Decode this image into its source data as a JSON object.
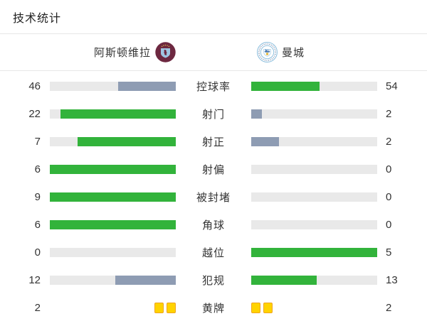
{
  "title": "技术统计",
  "teams": {
    "home": {
      "name": "阿斯顿维拉"
    },
    "away": {
      "name": "曼城"
    }
  },
  "rows": [
    {
      "label": "控球率",
      "home": 46,
      "away": 54,
      "type": "bar"
    },
    {
      "label": "射门",
      "home": 22,
      "away": 2,
      "type": "bar"
    },
    {
      "label": "射正",
      "home": 7,
      "away": 2,
      "type": "bar"
    },
    {
      "label": "射偏",
      "home": 6,
      "away": 0,
      "type": "bar"
    },
    {
      "label": "被封堵",
      "home": 9,
      "away": 0,
      "type": "bar"
    },
    {
      "label": "角球",
      "home": 6,
      "away": 0,
      "type": "bar"
    },
    {
      "label": "越位",
      "home": 0,
      "away": 5,
      "type": "bar"
    },
    {
      "label": "犯规",
      "home": 12,
      "away": 13,
      "type": "bar"
    },
    {
      "label": "黄牌",
      "home": 2,
      "away": 2,
      "type": "cards"
    }
  ],
  "colors": {
    "leading_bar": "#32b33b",
    "trailing_bar": "#8e9cb3",
    "bar_track": "#e9e9e9",
    "yellow_card_fill": "#ffd300",
    "yellow_card_border": "#efa41d"
  },
  "chart_data": {
    "type": "bar",
    "orientation": "horizontal-paired",
    "title": "技术统计",
    "categories": [
      "控球率",
      "射门",
      "射正",
      "射偏",
      "被封堵",
      "角球",
      "越位",
      "犯规",
      "黄牌"
    ],
    "series": [
      {
        "name": "阿斯顿维拉",
        "values": [
          46,
          22,
          7,
          6,
          9,
          6,
          0,
          12,
          2
        ]
      },
      {
        "name": "曼城",
        "values": [
          54,
          2,
          2,
          0,
          0,
          0,
          5,
          13,
          2
        ]
      }
    ],
    "value_scale": "fill ratio per row = value / (home + away)",
    "legend_position": "top"
  }
}
